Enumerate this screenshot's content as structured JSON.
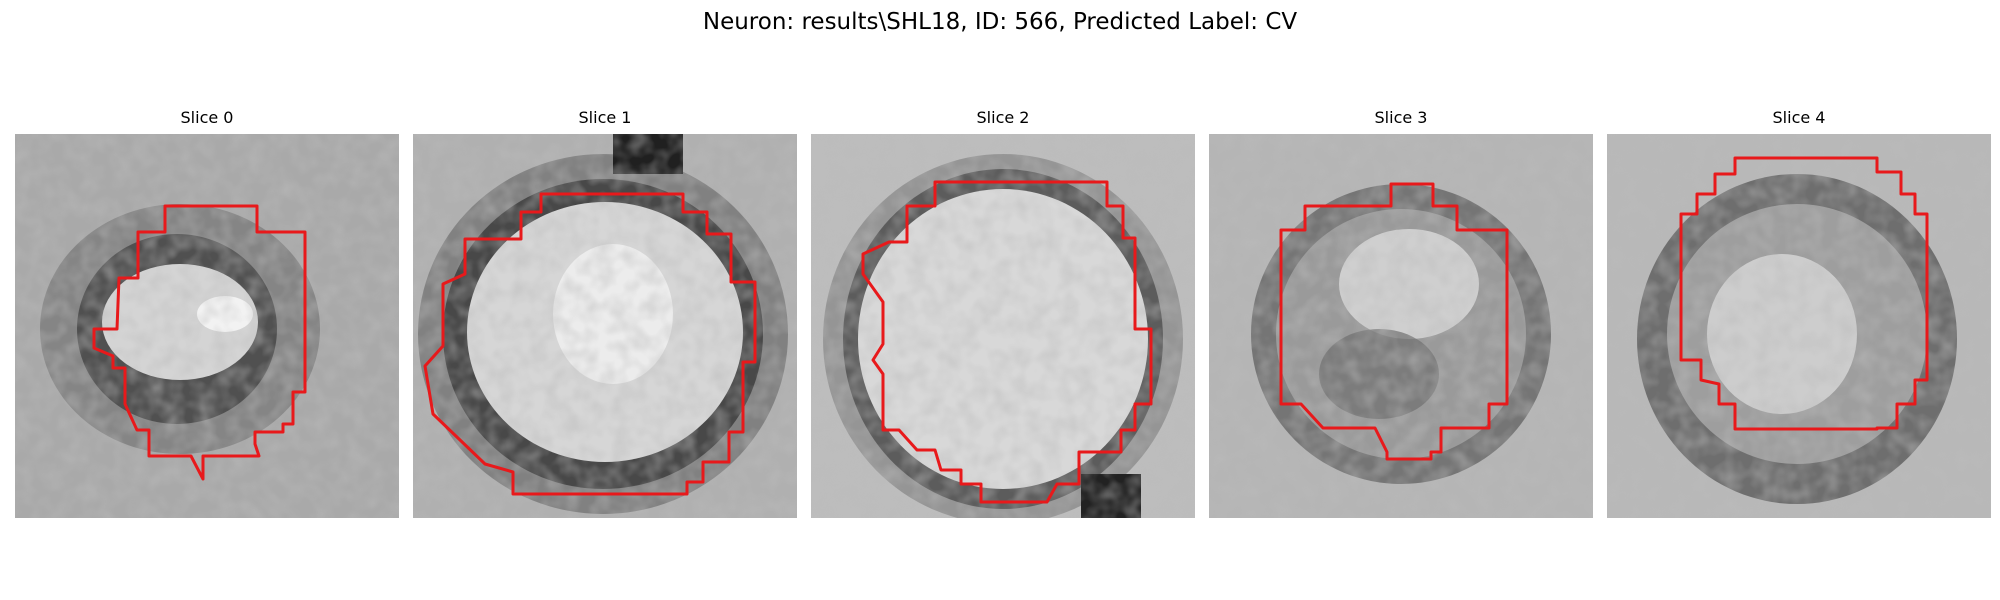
{
  "figure": {
    "title": "Neuron: results\\SHL18, ID: 566, Predicted Label: CV"
  },
  "colors": {
    "contour": "#e8191b",
    "background": "#ffffff"
  },
  "panels": [
    {
      "title": "Slice 0"
    },
    {
      "title": "Slice 1"
    },
    {
      "title": "Slice 2"
    },
    {
      "title": "Slice 3"
    },
    {
      "title": "Slice 4"
    }
  ]
}
